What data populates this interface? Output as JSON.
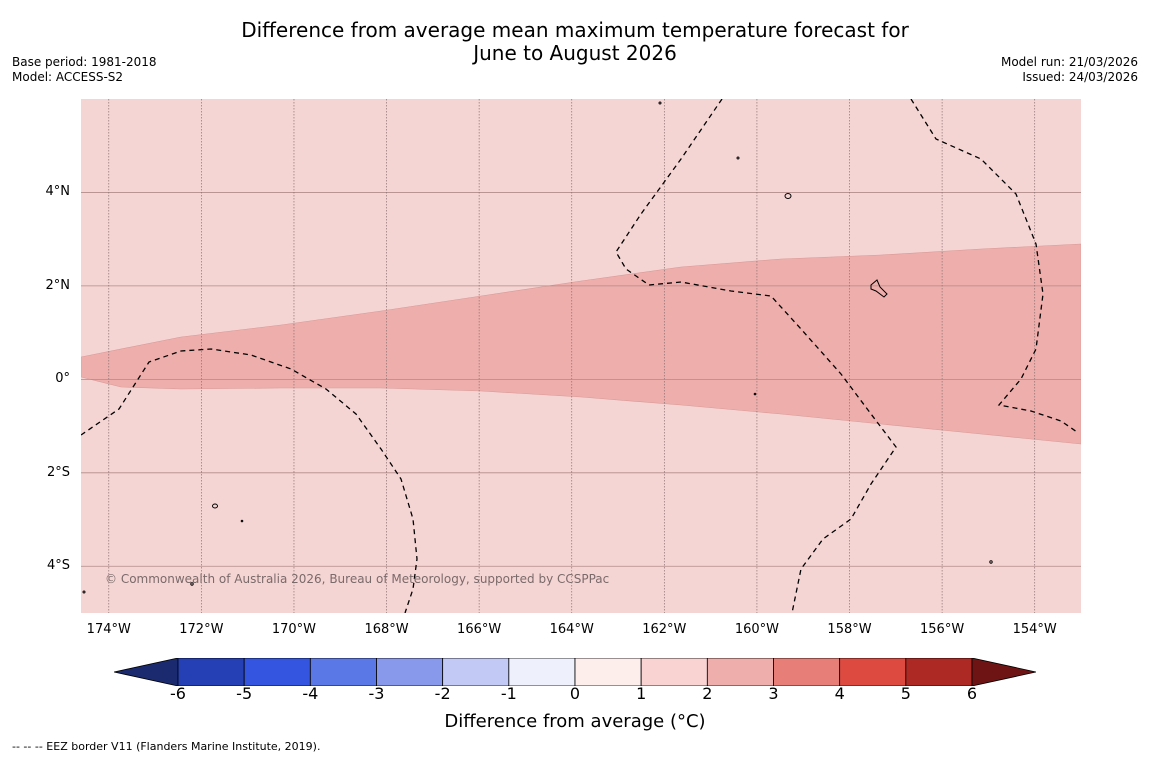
{
  "title": {
    "line1": "Difference from average mean maximum temperature forecast for",
    "line2": "June to August 2026"
  },
  "meta_left": {
    "base_period": "Base period: 1981-2018",
    "model": "Model: ACCESS-S2"
  },
  "meta_right": {
    "model_run": "Model run: 21/03/2026",
    "issued": "Issued: 24/03/2026"
  },
  "map": {
    "lat_range": [
      -5.0,
      6.0
    ],
    "lon_range": [
      -174.6,
      -153.0
    ],
    "lat_ticks": [
      {
        "value": 4,
        "label": "4°N"
      },
      {
        "value": 2,
        "label": "2°N"
      },
      {
        "value": 0,
        "label": "0°"
      },
      {
        "value": -2,
        "label": "2°S"
      },
      {
        "value": -4,
        "label": "4°S"
      }
    ],
    "lon_ticks": [
      {
        "value": -174,
        "label": "174°W"
      },
      {
        "value": -172,
        "label": "172°W"
      },
      {
        "value": -170,
        "label": "170°W"
      },
      {
        "value": -168,
        "label": "168°W"
      },
      {
        "value": -166,
        "label": "166°W"
      },
      {
        "value": -164,
        "label": "164°W"
      },
      {
        "value": -162,
        "label": "162°W"
      },
      {
        "value": -160,
        "label": "160°W"
      },
      {
        "value": -158,
        "label": "158°W"
      },
      {
        "value": -156,
        "label": "156°W"
      },
      {
        "value": -154,
        "label": "154°W"
      }
    ],
    "background_color": "#f5d5d3",
    "band_color": "#eeaeab",
    "background_class": "1 to 2",
    "band_class": "2 to 3",
    "copyright": "© Commonwealth of Australia 2026, Bureau of Meteorology, supported by CCSPPac"
  },
  "colorbar": {
    "ticks": [
      "-6",
      "-5",
      "-4",
      "-3",
      "-2",
      "-1",
      "0",
      "1",
      "2",
      "3",
      "4",
      "5",
      "6"
    ],
    "colors": [
      "#1b2a6e",
      "#2540b4",
      "#3355e0",
      "#5a78e6",
      "#8898ea",
      "#c3c9f5",
      "#eef0fc",
      "#fdeeec",
      "#f8d3d2",
      "#eeaeab",
      "#e87e78",
      "#dc4a40",
      "#ad2a24",
      "#6e1414"
    ],
    "label": "Difference from average (°C)"
  },
  "footnote": "--  --  -- EEZ border V11 (Flanders Marine Institute, 2019)."
}
